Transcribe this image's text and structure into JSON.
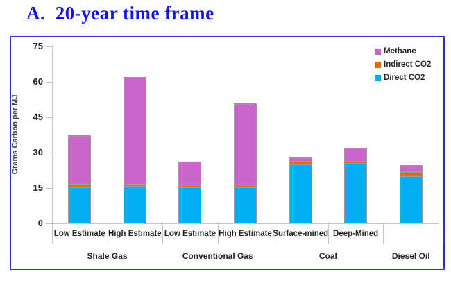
{
  "title": "A.  20-year time frame",
  "legend": [
    {
      "label": "Methane",
      "color": "#cc66cc"
    },
    {
      "label": "Indirect CO2",
      "color": "#e36c09"
    },
    {
      "label": "Direct CO2",
      "color": "#00b0f0"
    }
  ],
  "chart_data": {
    "type": "bar",
    "stacked": true,
    "title": "A. 20-year time frame",
    "ylabel": "Grams Carbon per MJ",
    "ylim": [
      0,
      75
    ],
    "yticks": [
      0,
      15,
      30,
      45,
      60,
      75
    ],
    "grid": false,
    "legend_position": "top-right",
    "categories": [
      "Low Estimate",
      "High Estimate",
      "Low Estimate",
      "High Estimate",
      "Surface-mined",
      "Deep-Mined",
      ""
    ],
    "groups": [
      {
        "label": "Shale Gas",
        "start": 0,
        "end": 1
      },
      {
        "label": "Conventional Gas",
        "start": 2,
        "end": 3
      },
      {
        "label": "Coal",
        "start": 4,
        "end": 5
      },
      {
        "label": "Diesel Oil",
        "start": 6,
        "end": 6
      }
    ],
    "series": [
      {
        "name": "Direct CO2",
        "color": "#00b0f0",
        "values": [
          15.3,
          15.5,
          15.3,
          15.3,
          25.1,
          25.2,
          19.9
        ]
      },
      {
        "name": "Indirect CO2",
        "color": "#e36c09",
        "values": [
          1.2,
          1.0,
          1.0,
          1.0,
          1.0,
          0.9,
          1.8
        ]
      },
      {
        "name": "Methane",
        "color": "#cc66cc",
        "values": [
          20.9,
          45.5,
          10.0,
          34.6,
          1.8,
          5.9,
          3.1
        ]
      }
    ],
    "stack_totals": [
      37.4,
      62.0,
      26.3,
      50.9,
      27.9,
      32.0,
      24.8
    ]
  }
}
